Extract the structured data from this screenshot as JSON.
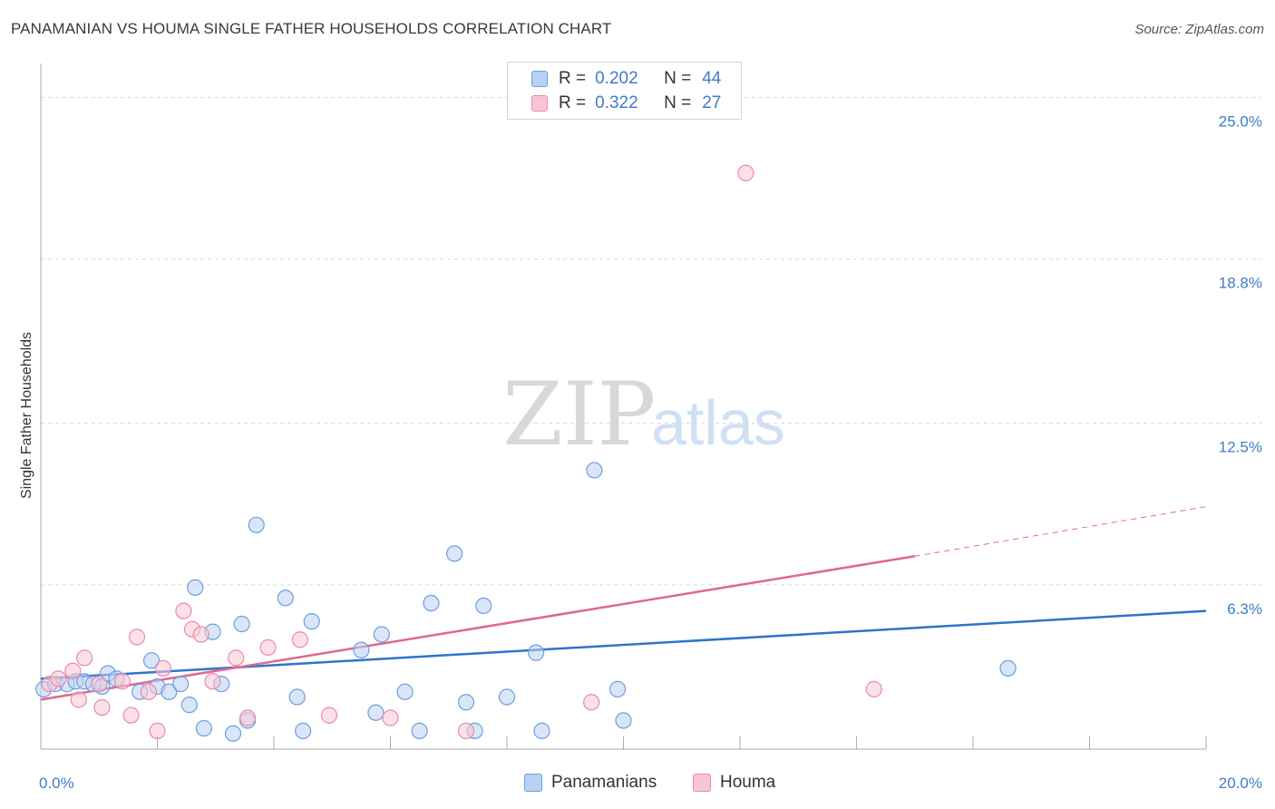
{
  "header": {
    "title": "PANAMANIAN VS HOUMA SINGLE FATHER HOUSEHOLDS CORRELATION CHART",
    "source": "Source: ZipAtlas.com"
  },
  "legend_top": {
    "rows": [
      {
        "r_label": "R =",
        "r_value": "0.202",
        "n_label": "N =",
        "n_value": "44"
      },
      {
        "r_label": "R =",
        "r_value": "0.322",
        "n_label": "N =",
        "n_value": "27"
      }
    ]
  },
  "legend_bottom": {
    "items": [
      "Panamanians",
      "Houma"
    ]
  },
  "watermark": {
    "zip": "ZIP",
    "atlas": "atlas"
  },
  "colors": {
    "blue_fill": "#b9d2f3",
    "blue_stroke": "#6c9fe0",
    "blue_line": "#2f74c9",
    "pink_fill": "#f7c6d5",
    "pink_stroke": "#e98aa8",
    "pink_line": "#e0678f",
    "tick_text": "#3f7cc8",
    "grid": "#d9d9d9"
  },
  "chart_data": {
    "type": "scatter",
    "title": "PANAMANIAN VS HOUMA SINGLE FATHER HOUSEHOLDS CORRELATION CHART",
    "xlabel": "",
    "ylabel": "Single Father Households",
    "xlim": [
      0,
      20
    ],
    "ylim": [
      0,
      26.3
    ],
    "x_tick_labels": [
      "0.0%",
      "20.0%"
    ],
    "y_ticks": [
      6.3,
      12.5,
      18.8,
      25.0
    ],
    "y_tick_labels": [
      "6.3%",
      "12.5%",
      "18.8%",
      "25.0%"
    ],
    "grid": true,
    "legend_position": "top-center",
    "series": [
      {
        "name": "Panamanians",
        "color": "#6c9fe0",
        "points": [
          [
            0.05,
            2.3
          ],
          [
            0.25,
            2.5
          ],
          [
            0.45,
            2.5
          ],
          [
            0.6,
            2.6
          ],
          [
            0.75,
            2.6
          ],
          [
            0.9,
            2.5
          ],
          [
            1.05,
            2.4
          ],
          [
            1.15,
            2.9
          ],
          [
            1.3,
            2.7
          ],
          [
            1.7,
            2.2
          ],
          [
            1.9,
            3.4
          ],
          [
            2.0,
            2.4
          ],
          [
            2.2,
            2.2
          ],
          [
            2.4,
            2.5
          ],
          [
            2.55,
            1.7
          ],
          [
            2.65,
            6.2
          ],
          [
            2.8,
            0.8
          ],
          [
            2.95,
            4.5
          ],
          [
            3.1,
            2.5
          ],
          [
            3.3,
            0.6
          ],
          [
            3.45,
            4.8
          ],
          [
            3.55,
            1.1
          ],
          [
            3.7,
            8.6
          ],
          [
            4.2,
            5.8
          ],
          [
            4.4,
            2.0
          ],
          [
            4.5,
            0.7
          ],
          [
            4.65,
            4.9
          ],
          [
            5.5,
            3.8
          ],
          [
            5.75,
            1.4
          ],
          [
            5.85,
            4.4
          ],
          [
            6.25,
            2.2
          ],
          [
            6.5,
            0.7
          ],
          [
            6.7,
            5.6
          ],
          [
            7.1,
            7.5
          ],
          [
            7.3,
            1.8
          ],
          [
            7.45,
            0.7
          ],
          [
            7.6,
            5.5
          ],
          [
            8.0,
            2.0
          ],
          [
            8.5,
            3.7
          ],
          [
            8.6,
            0.7
          ],
          [
            9.5,
            10.7
          ],
          [
            9.9,
            2.3
          ],
          [
            10.0,
            1.1
          ],
          [
            16.6,
            3.1
          ]
        ],
        "trend": {
          "x": [
            0,
            20
          ],
          "y": [
            2.7,
            5.3
          ]
        }
      },
      {
        "name": "Houma",
        "color": "#e98aa8",
        "points": [
          [
            0.15,
            2.5
          ],
          [
            0.3,
            2.7
          ],
          [
            0.55,
            3.0
          ],
          [
            0.65,
            1.9
          ],
          [
            0.75,
            3.5
          ],
          [
            1.0,
            2.5
          ],
          [
            1.05,
            1.6
          ],
          [
            1.4,
            2.6
          ],
          [
            1.55,
            1.3
          ],
          [
            1.65,
            4.3
          ],
          [
            1.85,
            2.2
          ],
          [
            2.0,
            0.7
          ],
          [
            2.1,
            3.1
          ],
          [
            2.45,
            5.3
          ],
          [
            2.6,
            4.6
          ],
          [
            2.75,
            4.4
          ],
          [
            2.95,
            2.6
          ],
          [
            3.35,
            3.5
          ],
          [
            3.55,
            1.2
          ],
          [
            3.9,
            3.9
          ],
          [
            4.45,
            4.2
          ],
          [
            4.95,
            1.3
          ],
          [
            6.0,
            1.2
          ],
          [
            7.3,
            0.7
          ],
          [
            9.45,
            1.8
          ],
          [
            12.1,
            22.1
          ],
          [
            14.3,
            2.3
          ]
        ],
        "trend": {
          "x": [
            0,
            15
          ],
          "y": [
            1.9,
            7.4
          ]
        },
        "trend_dashed": {
          "x": [
            15,
            20
          ],
          "y": [
            7.4,
            9.3
          ]
        }
      }
    ]
  }
}
